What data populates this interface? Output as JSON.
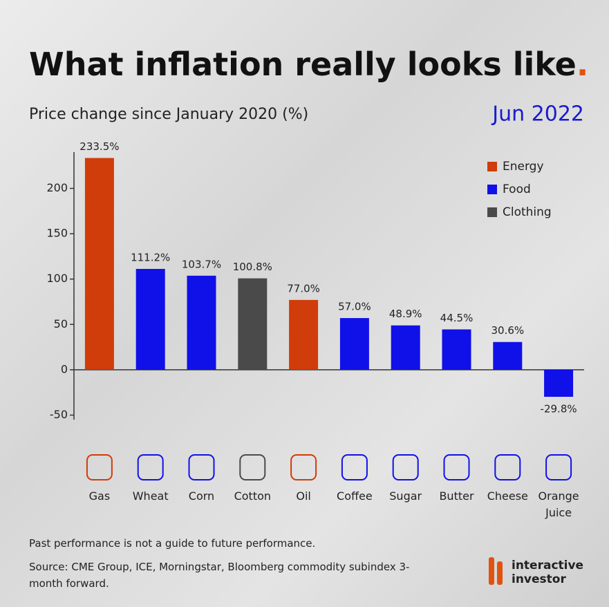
{
  "chart_data": {
    "type": "bar",
    "title": "What inflation really looks like",
    "title_mark": ".",
    "subtitle": "Price change since January 2020 (%)",
    "date": "Jun 2022",
    "categories": [
      "Gas",
      "Wheat",
      "Corn",
      "Cotton",
      "Oil",
      "Coffee",
      "Sugar",
      "Butter",
      "Cheese",
      "Orange Juice"
    ],
    "series": [
      {
        "name": "Energy",
        "color": "#d03c0a",
        "values": [
          233.5,
          null,
          null,
          null,
          77.0,
          null,
          null,
          null,
          null,
          null
        ],
        "value_labels": [
          "233.5%",
          null,
          null,
          null,
          "77.0%",
          null,
          null,
          null,
          null,
          null
        ]
      },
      {
        "name": "Food",
        "color": "#1010e8",
        "values": [
          null,
          111.2,
          103.7,
          null,
          null,
          57.0,
          48.9,
          44.5,
          30.6,
          -29.8
        ],
        "value_labels": [
          null,
          "111.2%",
          "103.7%",
          null,
          null,
          "57.0%",
          "48.9%",
          "44.5%",
          "30.6%",
          "-29.8%"
        ]
      },
      {
        "name": "Clothing",
        "color": "#4a4a4a",
        "values": [
          null,
          null,
          null,
          100.8,
          null,
          null,
          null,
          null,
          null,
          null
        ],
        "value_labels": [
          null,
          null,
          null,
          "100.8%",
          null,
          null,
          null,
          null,
          null,
          null
        ]
      }
    ],
    "ylim": [
      -55,
      240
    ],
    "yticks": [
      -50,
      0,
      50,
      100,
      150,
      200
    ],
    "legend": "top-right",
    "notes": [
      "Past performance is not a guide to future performance.",
      "Source: CME Group, ICE, Morningstar, Bloomberg commodity subindex 3-month forward."
    ],
    "brand": "interactive investor"
  }
}
